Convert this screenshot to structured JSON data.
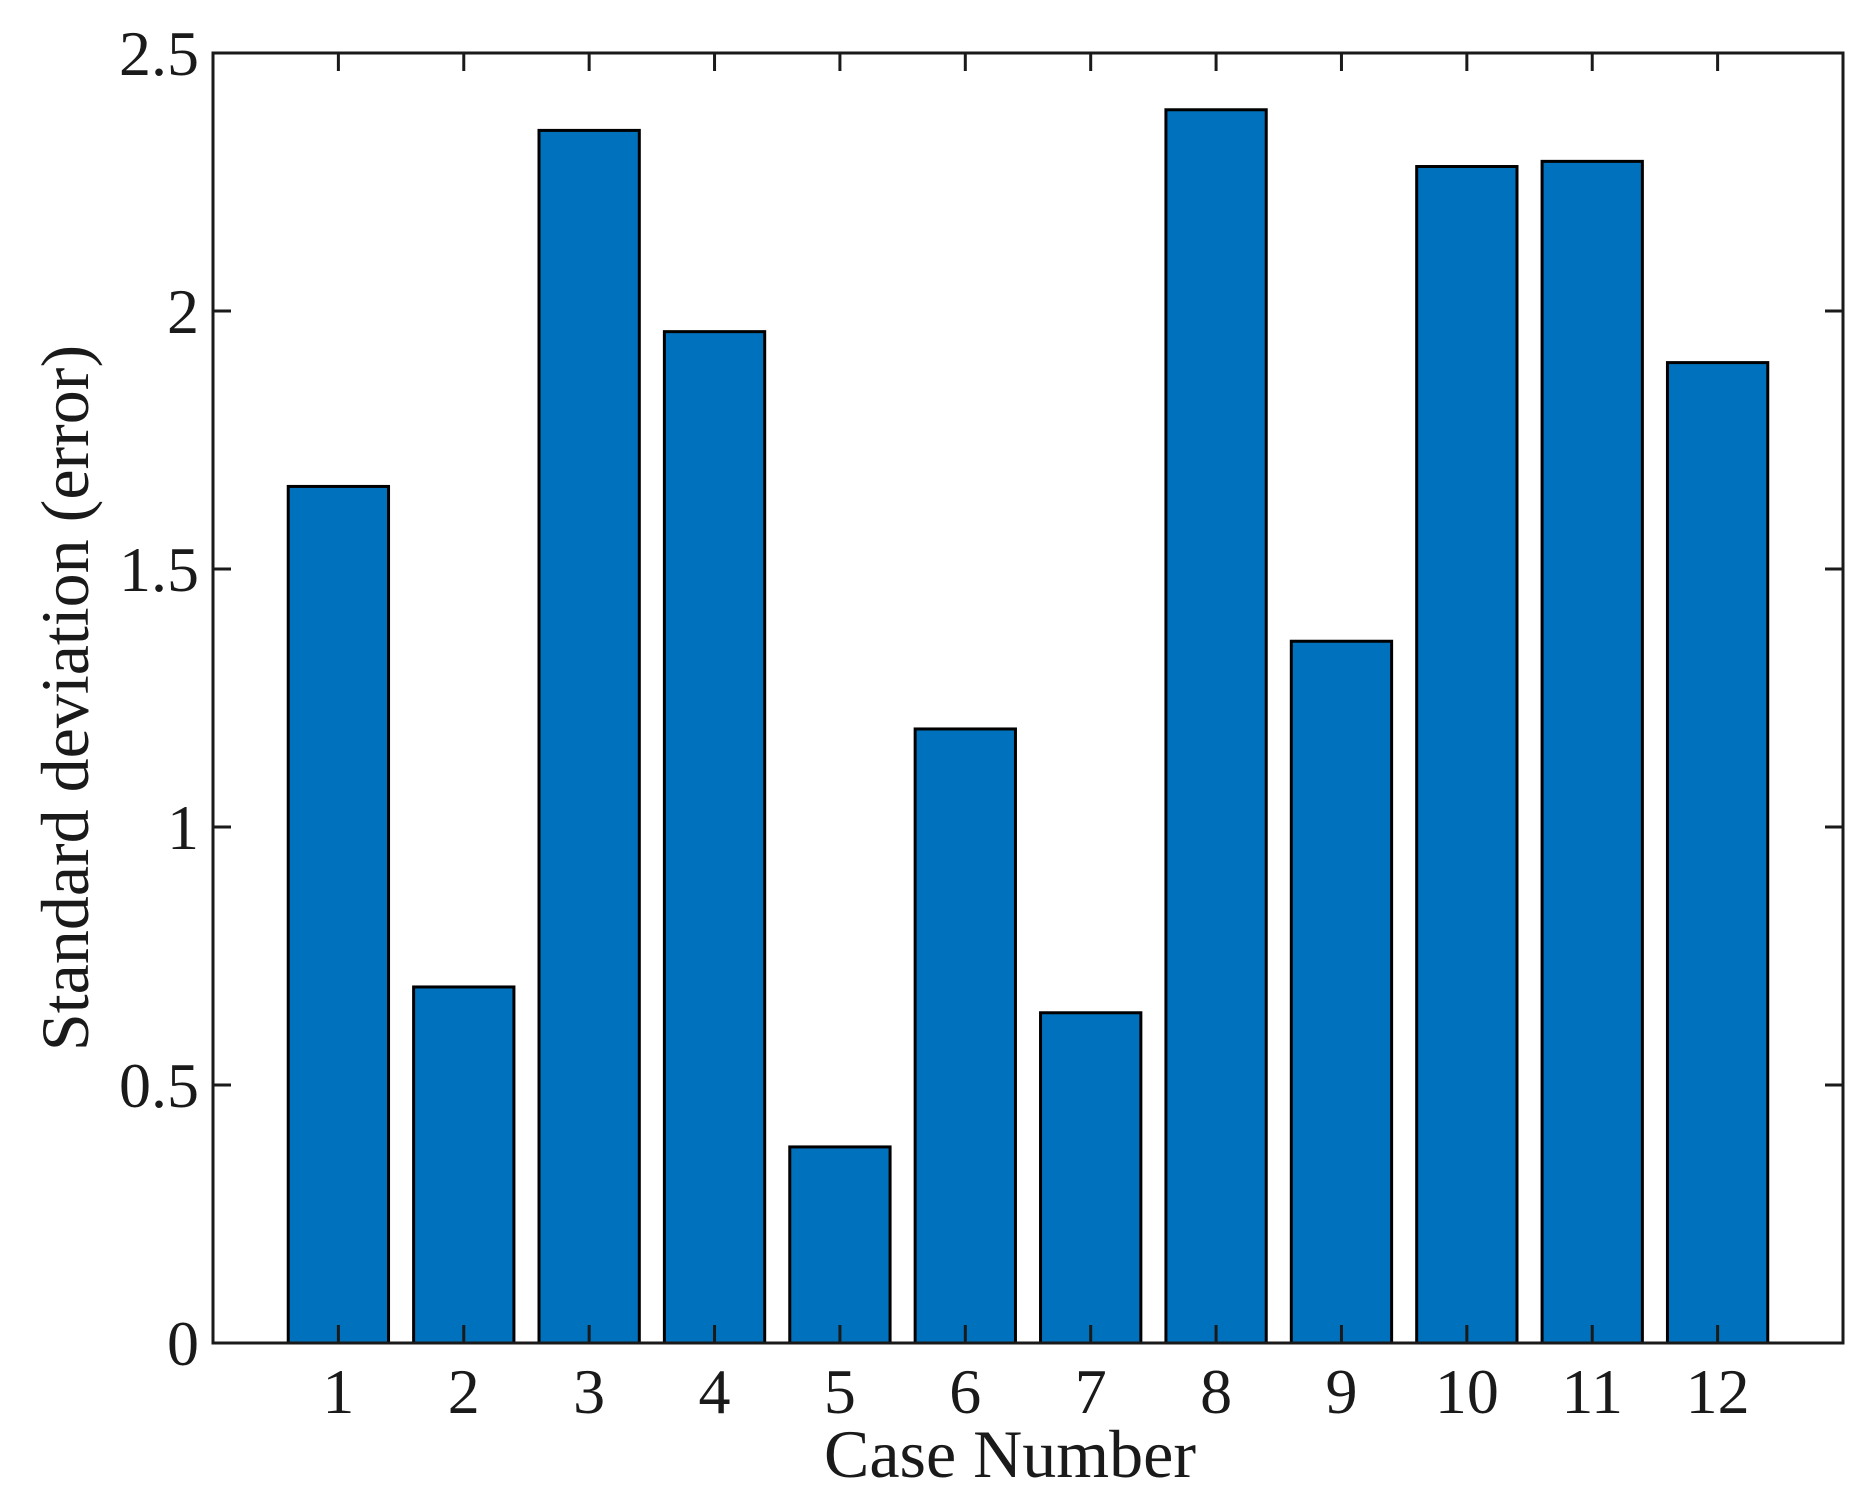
{
  "chart_data": {
    "type": "bar",
    "categories": [
      "1",
      "2",
      "3",
      "4",
      "5",
      "6",
      "7",
      "8",
      "9",
      "10",
      "11",
      "12"
    ],
    "values": [
      1.66,
      0.69,
      2.35,
      1.96,
      0.38,
      1.19,
      0.64,
      2.39,
      1.36,
      2.28,
      2.29,
      1.9
    ],
    "title": "",
    "xlabel": "Case Number",
    "ylabel": "Standard deviation (error)",
    "ylim": [
      0,
      2.5
    ],
    "xlim": [
      0,
      13
    ],
    "yticks": [
      0,
      0.5,
      1,
      1.5,
      2,
      2.5
    ],
    "ytick_labels": [
      "0",
      "0.5",
      "1",
      "1.5",
      "2",
      "2.5"
    ],
    "grid": false,
    "bar_color": "#0072BD",
    "bar_edge_color": "#000000"
  }
}
